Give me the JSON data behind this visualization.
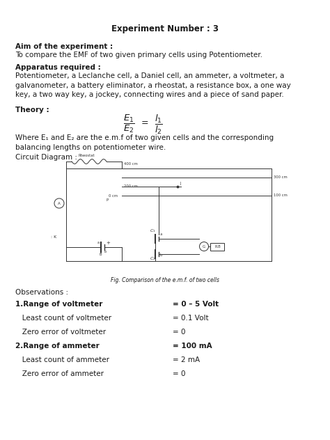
{
  "title": "Experiment Number : 3",
  "aim_header": "Aim of the experiment :",
  "aim_text": "To compare the EMF of two given primary cells using Potentiometer.",
  "apparatus_header": "Apparatus required :",
  "apparatus_text": "Potentiometer, a Leclanche cell, a Daniel cell, an ammeter, a voltmeter, a\ngalvanometer, a battery eliminator, a rheostat, a resistance box, a one way\nkey, a two way key, a jockey, connecting wires and a piece of sand paper.",
  "theory_header": "Theory :",
  "where_text": "Where E₁ and E₂ are the e.m.f of two given cells and the corresponding\nbalancing lengths on potentiometer wire.",
  "circuit_header": "Circuit Diagram :",
  "fig_caption": "Fig. Comparison of the e.m.f. of two cells",
  "observations_header": "Observations :",
  "obs_items": [
    [
      "1.Range of voltmeter",
      "= 0 – 5 Volt"
    ],
    [
      "   Least count of voltmeter",
      "= 0.1 Volt"
    ],
    [
      "   Zero error of voltmeter",
      "= 0"
    ],
    [
      "2.Range of ammeter",
      "= 100 mA"
    ],
    [
      "   Least count of ammeter",
      "= 2 mA"
    ],
    [
      "   Zero error of ammeter",
      "= 0"
    ]
  ],
  "bg_color": "#ffffff",
  "text_color": "#1a1a1a",
  "font_size_title": 8.5,
  "font_size_body": 7.5,
  "font_size_small": 5.5
}
